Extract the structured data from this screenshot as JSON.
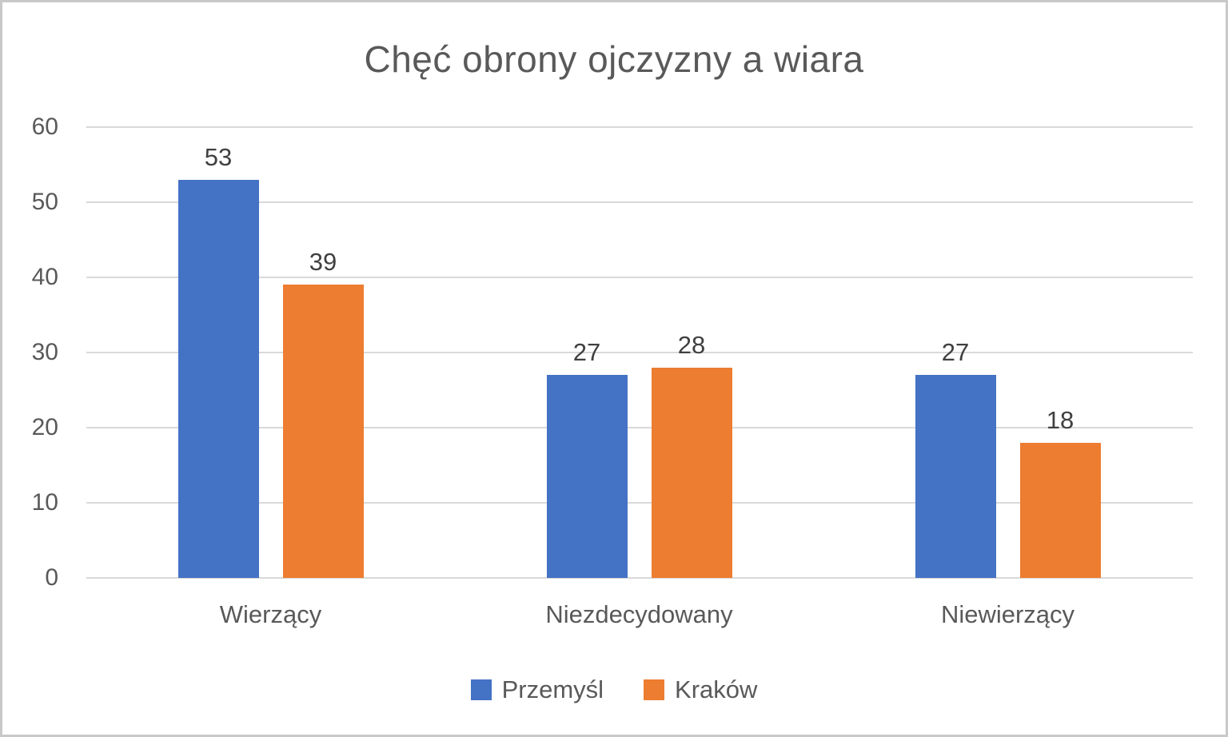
{
  "title": "Chęć obrony ojczyzny a wiara",
  "colors": {
    "series_blue": "#4472C4",
    "series_orange": "#ED7D31",
    "title_text": "#595959",
    "axis_text": "#595959",
    "data_label_text": "#404040",
    "gridline": "#D9D9D9",
    "frame_border": "#C9C9C9"
  },
  "chart_data": {
    "type": "bar",
    "title": "Chęć obrony ojczyzny a wiara",
    "categories": [
      "Wierzący",
      "Niezdecydowany",
      "Niewierzący"
    ],
    "series": [
      {
        "name": "Przemyśl",
        "color": "#4472C4",
        "values": [
          53,
          27,
          27
        ]
      },
      {
        "name": "Kraków",
        "color": "#ED7D31",
        "values": [
          39,
          28,
          18
        ]
      }
    ],
    "xlabel": "",
    "ylabel": "",
    "ylim": [
      0,
      60
    ],
    "yticks": [
      0,
      10,
      20,
      30,
      40,
      50,
      60
    ],
    "grid": true,
    "legend_position": "bottom",
    "data_labels": true
  }
}
